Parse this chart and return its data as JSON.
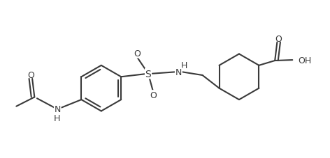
{
  "line_color": "#3a3a3a",
  "line_width": 1.5,
  "font_size": 9,
  "bg_color": "#ffffff",
  "figsize": [
    4.72,
    2.28
  ],
  "dpi": 100,
  "xlim": [
    0,
    10
  ],
  "ylim": [
    0,
    5
  ]
}
